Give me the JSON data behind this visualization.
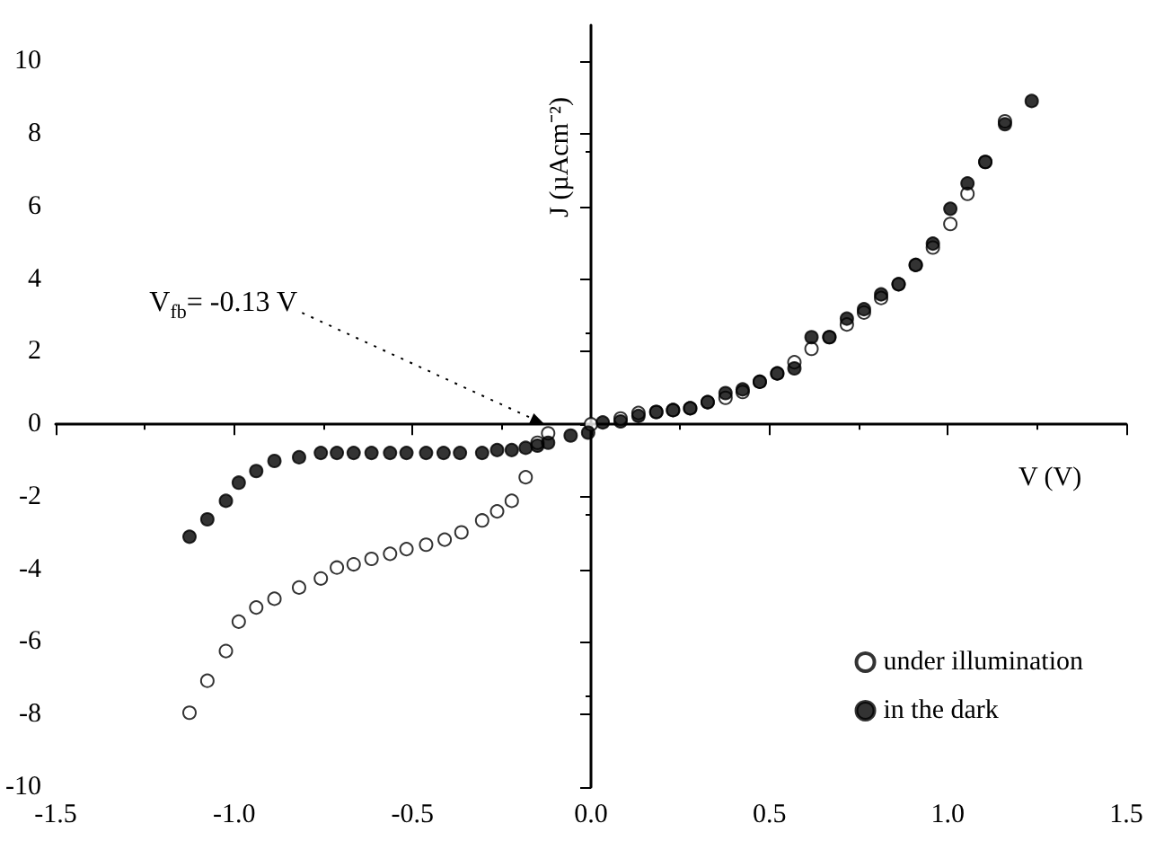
{
  "chart_data": {
    "type": "scatter",
    "xlabel": "V (V)",
    "ylabel": "J (µAcm⁻²)",
    "xlim": [
      -1.5,
      1.5
    ],
    "xticks": [
      {
        "value": -1.5,
        "label": "-1.5"
      },
      {
        "value": -1,
        "label": "-1.0"
      },
      {
        "value": -0.5,
        "label": "-0.5"
      },
      {
        "value": 0,
        "label": "0.0"
      },
      {
        "value": 0.5,
        "label": "0.5"
      },
      {
        "value": 1,
        "label": "1.0"
      },
      {
        "value": 1.5,
        "label": "1.5"
      }
    ],
    "ylim": [
      -10,
      11
    ],
    "yticks": [
      -10,
      -8,
      -6,
      -4,
      -2,
      0,
      2,
      4,
      6,
      8,
      10
    ],
    "marker": "circle",
    "legend": "bottom right",
    "annotations": [
      {
        "text": "V$_{fb}$= -0.13 V",
        "x": -0.13,
        "y": 0
      }
    ],
    "series": [
      {
        "name": "under illumination",
        "color": "#ffffff",
        "x": [
          -1.125,
          -1.075,
          -1.023,
          -0.987,
          -0.938,
          -0.887,
          -0.818,
          -0.757,
          -0.712,
          -0.665,
          -0.615,
          -0.563,
          -0.517,
          -0.462,
          -0.41,
          -0.363,
          -0.305,
          -0.263,
          -0.222,
          -0.183,
          -0.15,
          -0.12,
          0.0,
          0.083,
          0.133,
          0.183,
          0.23,
          0.278,
          0.327,
          0.377,
          0.425,
          0.473,
          0.522,
          0.57,
          0.618,
          0.668,
          0.717,
          0.765,
          0.813,
          0.862,
          0.91,
          0.958,
          1.007,
          1.055,
          1.105,
          1.16
        ],
        "values": [
          -7.95,
          -7.07,
          -6.25,
          -5.44,
          -5.05,
          -4.81,
          -4.5,
          -4.25,
          -3.95,
          -3.86,
          -3.71,
          -3.57,
          -3.44,
          -3.32,
          -3.18,
          -2.98,
          -2.65,
          -2.4,
          -2.11,
          -1.46,
          -0.51,
          -0.25,
          0.0,
          0.16,
          0.31,
          0.34,
          0.39,
          0.44,
          0.61,
          0.73,
          0.89,
          1.17,
          1.4,
          1.71,
          2.08,
          2.4,
          2.75,
          3.08,
          3.48,
          3.86,
          4.39,
          4.87,
          5.52,
          6.35,
          7.23,
          8.35
        ]
      },
      {
        "name": "in the dark",
        "color": "#000000",
        "x": [
          -1.125,
          -1.075,
          -1.023,
          -0.987,
          -0.938,
          -0.887,
          -0.818,
          -0.757,
          -0.712,
          -0.665,
          -0.615,
          -0.563,
          -0.517,
          -0.462,
          -0.413,
          -0.367,
          -0.305,
          -0.263,
          -0.222,
          -0.183,
          -0.15,
          -0.12,
          -0.057,
          -0.008,
          0.033,
          0.083,
          0.133,
          0.183,
          0.23,
          0.278,
          0.327,
          0.377,
          0.425,
          0.473,
          0.522,
          0.57,
          0.618,
          0.668,
          0.717,
          0.765,
          0.813,
          0.862,
          0.91,
          0.958,
          1.007,
          1.055,
          1.105,
          1.16,
          1.235
        ],
        "values": [
          -3.1,
          -2.62,
          -2.11,
          -1.61,
          -1.29,
          -1.01,
          -0.91,
          -0.79,
          -0.79,
          -0.79,
          -0.79,
          -0.79,
          -0.79,
          -0.79,
          -0.79,
          -0.79,
          -0.79,
          -0.71,
          -0.71,
          -0.65,
          -0.59,
          -0.51,
          -0.31,
          -0.23,
          0.05,
          0.08,
          0.23,
          0.34,
          0.39,
          0.44,
          0.61,
          0.86,
          0.96,
          1.17,
          1.4,
          1.54,
          2.4,
          2.4,
          2.91,
          3.17,
          3.58,
          3.86,
          4.39,
          4.98,
          5.94,
          6.64,
          7.23,
          8.27,
          8.91
        ]
      }
    ]
  }
}
